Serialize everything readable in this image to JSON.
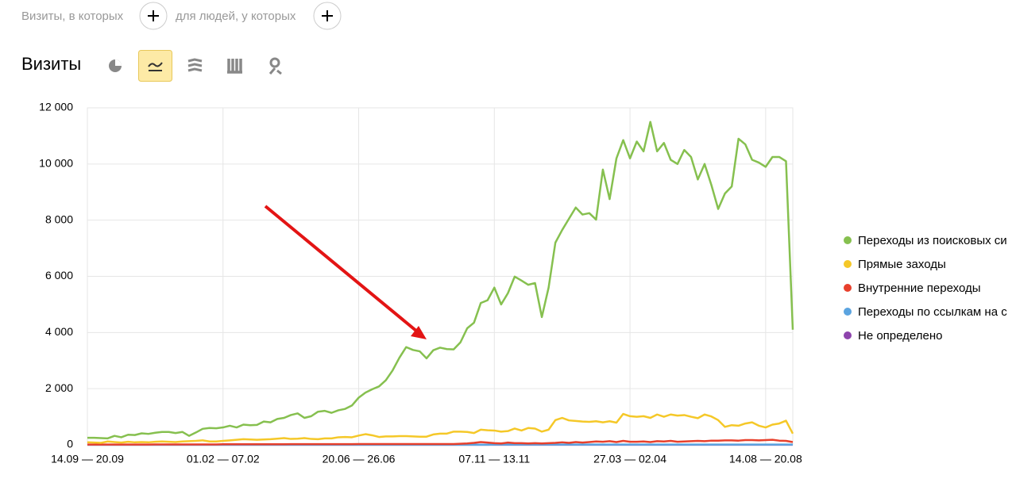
{
  "filters": {
    "visits_label": "Визиты, в которых",
    "people_label": "для людей, у которых"
  },
  "section_title": "Визиты",
  "chart_data": {
    "type": "line",
    "categories": [
      "14.09 — 20.09",
      null,
      null,
      null,
      null,
      null,
      null,
      null,
      null,
      null,
      null,
      null,
      null,
      null,
      null,
      null,
      null,
      null,
      null,
      null,
      "01.02 — 07.02",
      null,
      null,
      null,
      null,
      null,
      null,
      null,
      null,
      null,
      null,
      null,
      null,
      null,
      null,
      null,
      null,
      null,
      null,
      null,
      "20.06 — 26.06",
      null,
      null,
      null,
      null,
      null,
      null,
      null,
      null,
      null,
      null,
      null,
      null,
      null,
      null,
      null,
      null,
      null,
      null,
      null,
      "07.11 — 13.11",
      null,
      null,
      null,
      null,
      null,
      null,
      null,
      null,
      null,
      null,
      null,
      null,
      null,
      null,
      null,
      null,
      null,
      null,
      null,
      "27.03 — 02.04",
      null,
      null,
      null,
      null,
      null,
      null,
      null,
      null,
      null,
      null,
      null,
      null,
      null,
      null,
      null,
      null,
      null,
      null,
      null,
      "14.08 — 20.08",
      null,
      null,
      null,
      null
    ],
    "ylim": [
      0,
      12000
    ],
    "yticks": [
      0,
      {
        "value": 2000,
        "label": "2 000"
      },
      {
        "value": 4000,
        "label": "4 000"
      },
      {
        "value": 6000,
        "label": "6 000"
      },
      {
        "value": 8000,
        "label": "8 000"
      },
      {
        "value": 10000,
        "label": "10 000"
      },
      {
        "value": 12000,
        "label": "12 000"
      }
    ],
    "grid": true,
    "legend": "right",
    "series": [
      {
        "name": "Переходы из поисковых си",
        "color": "#86c04f",
        "values": [
          250,
          250,
          240,
          230,
          320,
          270,
          360,
          350,
          410,
          390,
          430,
          460,
          460,
          420,
          460,
          320,
          440,
          570,
          600,
          590,
          620,
          680,
          620,
          720,
          700,
          710,
          830,
          800,
          920,
          960,
          1060,
          1120,
          960,
          1020,
          1180,
          1210,
          1140,
          1230,
          1280,
          1400,
          1680,
          1860,
          1980,
          2080,
          2300,
          2650,
          3100,
          3480,
          3380,
          3330,
          3080,
          3370,
          3460,
          3410,
          3400,
          3650,
          4150,
          4350,
          5050,
          5150,
          5600,
          5000,
          5400,
          5990,
          5850,
          5700,
          5760,
          4550,
          5600,
          7200,
          7650,
          8050,
          8450,
          8200,
          8250,
          8020,
          9800,
          8750,
          10200,
          10850,
          10200,
          10800,
          10450,
          11500,
          10450,
          10750,
          10150,
          10000,
          10500,
          10250,
          9450,
          10000,
          9250,
          8400,
          8950,
          9200,
          10900,
          10700,
          10150,
          10050,
          9900,
          10250,
          10250,
          10100,
          4100
        ]
      },
      {
        "name": "Прямые заходы",
        "color": "#f5c828",
        "values": [
          90,
          80,
          70,
          120,
          100,
          80,
          110,
          90,
          100,
          90,
          110,
          120,
          110,
          100,
          120,
          130,
          140,
          160,
          120,
          120,
          140,
          160,
          180,
          200,
          190,
          180,
          190,
          200,
          220,
          240,
          210,
          220,
          240,
          210,
          200,
          230,
          230,
          270,
          280,
          270,
          330,
          380,
          340,
          280,
          300,
          300,
          310,
          310,
          300,
          290,
          290,
          370,
          400,
          400,
          470,
          470,
          460,
          420,
          540,
          520,
          510,
          470,
          490,
          580,
          510,
          600,
          580,
          470,
          540,
          880,
          960,
          870,
          850,
          830,
          820,
          840,
          800,
          840,
          790,
          1100,
          1020,
          1000,
          1020,
          960,
          1080,
          1000,
          1080,
          1040,
          1060,
          1000,
          950,
          1080,
          1010,
          880,
          640,
          700,
          680,
          760,
          800,
          680,
          620,
          720,
          760,
          860,
          400
        ]
      },
      {
        "name": "Внутренние переходы",
        "color": "#e8402c",
        "values": [
          10,
          10,
          10,
          10,
          10,
          10,
          10,
          10,
          10,
          10,
          15,
          15,
          15,
          15,
          15,
          15,
          15,
          15,
          15,
          15,
          20,
          20,
          20,
          20,
          20,
          20,
          20,
          20,
          20,
          20,
          25,
          25,
          25,
          25,
          25,
          25,
          25,
          25,
          25,
          25,
          30,
          30,
          30,
          30,
          30,
          30,
          30,
          30,
          30,
          30,
          30,
          30,
          30,
          30,
          30,
          40,
          50,
          70,
          100,
          80,
          60,
          50,
          80,
          60,
          60,
          50,
          60,
          50,
          60,
          70,
          90,
          70,
          100,
          80,
          100,
          120,
          110,
          130,
          100,
          140,
          110,
          110,
          120,
          100,
          130,
          120,
          140,
          110,
          120,
          130,
          140,
          130,
          150,
          150,
          160,
          160,
          150,
          170,
          170,
          160,
          170,
          180,
          150,
          140,
          100
        ]
      },
      {
        "name": "Переходы по ссылкам на с",
        "color": "#5ba4e0",
        "values": [
          5,
          5,
          5,
          5,
          5,
          5,
          5,
          5,
          5,
          5,
          5,
          5,
          5,
          5,
          5,
          5,
          5,
          5,
          5,
          5,
          5,
          5,
          5,
          5,
          5,
          5,
          5,
          5,
          5,
          5,
          5,
          5,
          5,
          5,
          5,
          5,
          5,
          5,
          5,
          5,
          5,
          5,
          5,
          5,
          5,
          5,
          5,
          5,
          5,
          5,
          5,
          5,
          5,
          5,
          5,
          5,
          5,
          5,
          5,
          5,
          10,
          10,
          10,
          10,
          10,
          10,
          10,
          10,
          10,
          10,
          10,
          10,
          10,
          10,
          10,
          10,
          10,
          10,
          10,
          10,
          10,
          10,
          10,
          10,
          10,
          10,
          10,
          10,
          10,
          10,
          10,
          10,
          10,
          10,
          10,
          10,
          10,
          10,
          10,
          10,
          10,
          10,
          10,
          10,
          10
        ]
      },
      {
        "name": "Не определено",
        "color": "#8e44ad",
        "values": [
          2,
          2,
          2,
          2,
          2,
          2,
          2,
          2,
          2,
          2,
          2,
          2,
          2,
          2,
          2,
          2,
          2,
          2,
          2,
          2,
          2,
          2,
          2,
          2,
          2,
          2,
          2,
          2,
          2,
          2,
          2,
          2,
          2,
          2,
          2,
          2,
          2,
          2,
          2,
          2,
          2,
          2,
          2,
          2,
          2,
          2,
          2,
          2,
          2,
          2,
          2,
          2,
          2,
          2,
          2,
          2,
          2,
          2,
          2,
          2,
          2,
          2,
          2,
          2,
          2,
          2,
          2,
          2,
          2,
          2,
          2,
          2,
          2,
          2,
          2,
          2,
          2,
          2,
          2,
          2,
          2,
          2,
          2,
          2,
          2,
          2,
          2,
          2,
          2,
          2,
          2,
          2,
          2,
          2,
          2,
          2,
          2,
          2,
          2,
          2,
          2,
          2,
          2,
          2,
          2
        ]
      }
    ]
  }
}
